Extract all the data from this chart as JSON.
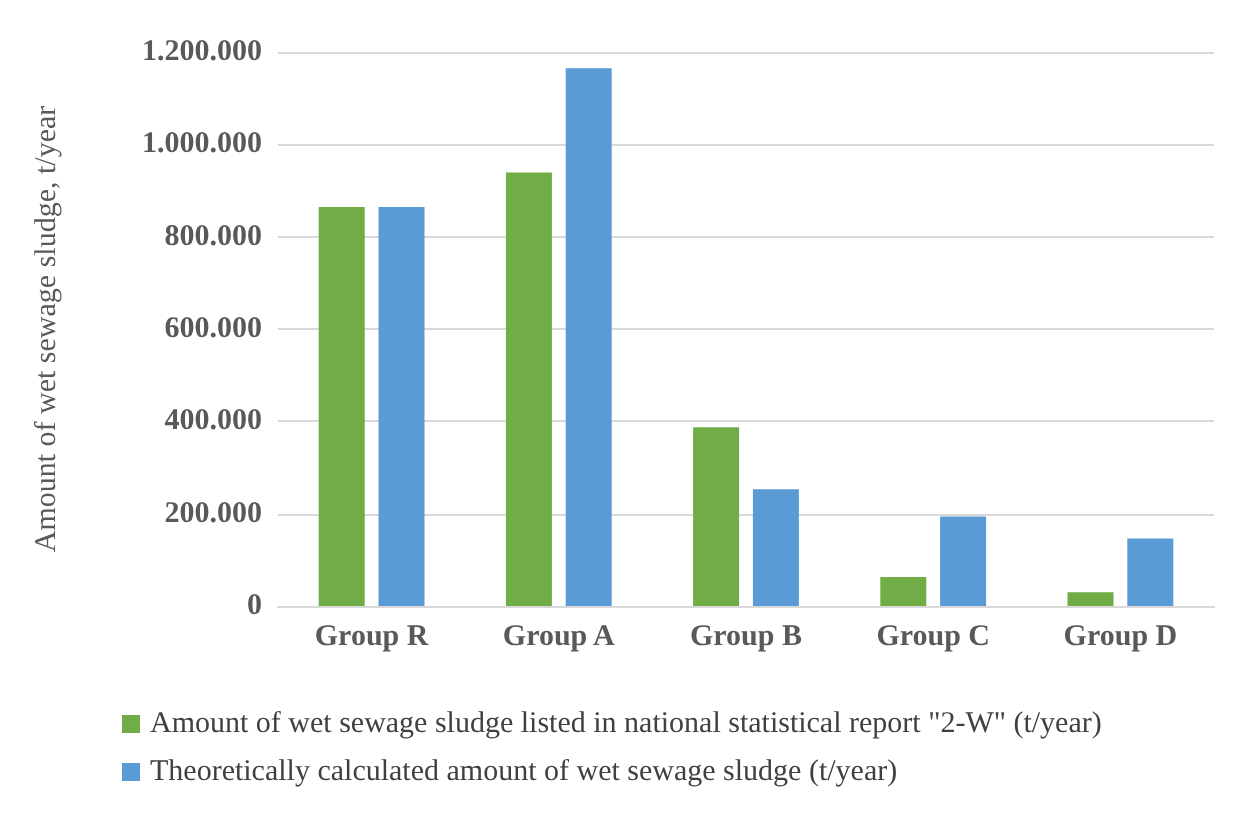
{
  "chart_data": {
    "type": "bar",
    "ylabel": "Amount of wet sewage sludge, t/year",
    "categories": [
      "Group R",
      "Group A",
      "Group B",
      "Group C",
      "Group D"
    ],
    "series": [
      {
        "name": "Amount of wet sewage sludge listed in national statistical report \"2-W\" (t/year)",
        "color": "#70ad47",
        "values": [
          864000,
          939000,
          387000,
          63000,
          30000
        ]
      },
      {
        "name": "Theoretically calculated amount of wet sewage sludge (t/year)",
        "color": "#5b9bd5",
        "values": [
          864000,
          1165000,
          253000,
          194000,
          146000
        ]
      }
    ],
    "ylim": [
      0,
      1200000
    ],
    "yticks": [
      0,
      {
        "value": 200000,
        "label": "200.000"
      },
      {
        "value": 400000,
        "label": "400.000"
      },
      {
        "value": 600000,
        "label": "600.000"
      },
      {
        "value": 800000,
        "label": "800.000"
      },
      {
        "value": 1000000,
        "label": "1.000.000"
      },
      {
        "value": 1200000,
        "label": "1.200.000"
      }
    ],
    "grid": "y",
    "legend": "bottom"
  }
}
